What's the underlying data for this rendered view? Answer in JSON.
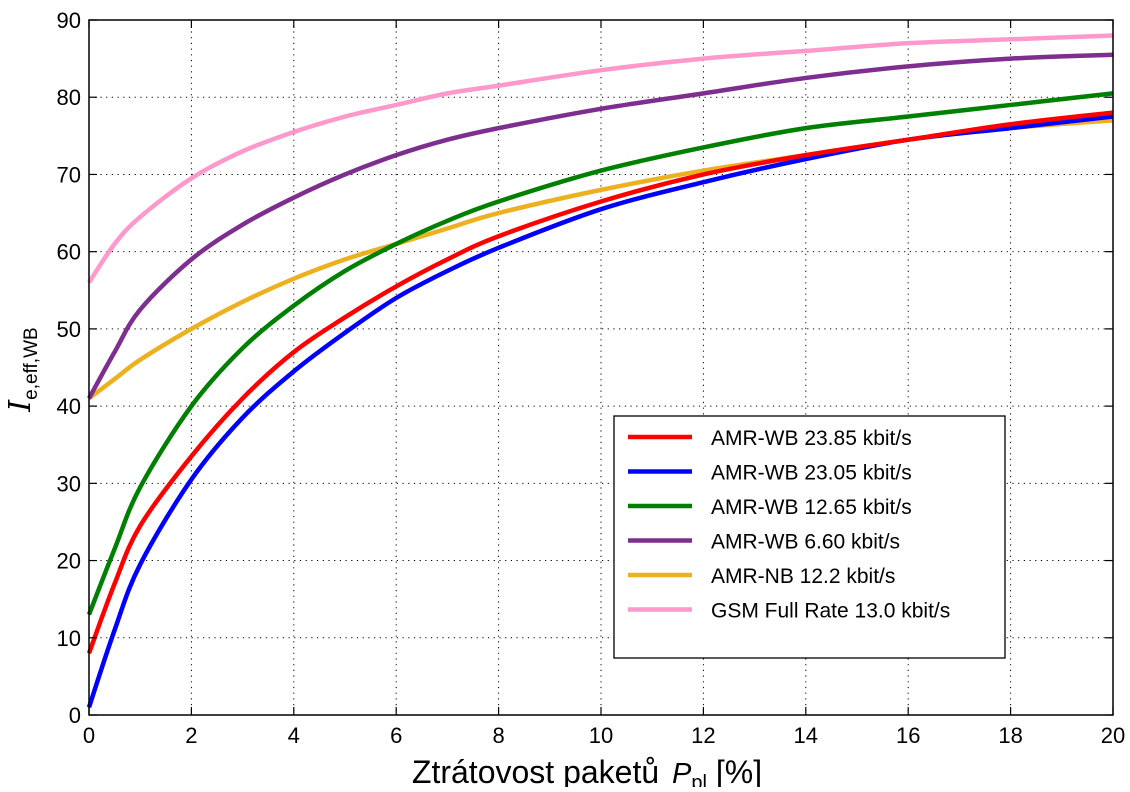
{
  "chart_data": {
    "type": "line",
    "xlabel": {
      "prefix": "Ztrátovost paketů ",
      "symbol": "P",
      "subscript": "pl",
      "unit": " [%]"
    },
    "ylabel": {
      "symbol": "I",
      "subscript": "e,eff,WB"
    },
    "xlim": [
      0,
      20
    ],
    "ylim": [
      0,
      90
    ],
    "xticks": [
      0,
      2,
      4,
      6,
      8,
      10,
      12,
      14,
      16,
      18,
      20
    ],
    "yticks": [
      0,
      10,
      20,
      30,
      40,
      50,
      60,
      70,
      80,
      90
    ],
    "grid": true,
    "legend_position": "lower-right",
    "x": [
      0,
      0.5,
      1,
      2,
      3,
      4,
      5,
      6,
      7,
      8,
      10,
      12,
      14,
      16,
      18,
      20
    ],
    "series": [
      {
        "name": "AMR-WB 23.85 kbit/s",
        "color": "#ff0000",
        "values": [
          8.0,
          17.0,
          24.5,
          33.5,
          41.0,
          47.0,
          51.5,
          55.5,
          59.0,
          62.0,
          66.5,
          70.0,
          72.5,
          74.5,
          76.5,
          78.0
        ]
      },
      {
        "name": "AMR-WB 23.05 kbit/s",
        "color": "#0000ff",
        "values": [
          1.0,
          11.0,
          19.5,
          30.5,
          38.5,
          44.5,
          49.5,
          54.0,
          57.5,
          60.5,
          65.5,
          69.0,
          72.0,
          74.5,
          76.0,
          77.5
        ]
      },
      {
        "name": "AMR-WB 12.65 kbit/s",
        "color": "#008000",
        "values": [
          13.0,
          21.5,
          29.5,
          40.0,
          47.5,
          53.0,
          57.5,
          61.0,
          64.0,
          66.5,
          70.5,
          73.5,
          76.0,
          77.5,
          79.0,
          80.5
        ]
      },
      {
        "name": "AMR-WB 6.60 kbit/s",
        "color": "#7d2e8e",
        "values": [
          41.0,
          47.0,
          52.5,
          59.0,
          63.5,
          67.0,
          70.0,
          72.5,
          74.5,
          76.0,
          78.5,
          80.5,
          82.5,
          84.0,
          85.0,
          85.5
        ]
      },
      {
        "name": "AMR-NB 12.2 kbit/s",
        "color": "#edb120",
        "values": [
          41.0,
          43.5,
          46.0,
          50.0,
          53.5,
          56.5,
          59.0,
          61.0,
          63.0,
          65.0,
          68.0,
          70.5,
          72.5,
          74.5,
          76.0,
          77.0
        ]
      },
      {
        "name": "GSM Full Rate 13.0 kbit/s",
        "color": "#ff99cc",
        "values": [
          56.0,
          61.0,
          64.5,
          69.5,
          73.0,
          75.5,
          77.5,
          79.0,
          80.5,
          81.5,
          83.5,
          85.0,
          86.0,
          87.0,
          87.5,
          88.0
        ]
      }
    ]
  }
}
